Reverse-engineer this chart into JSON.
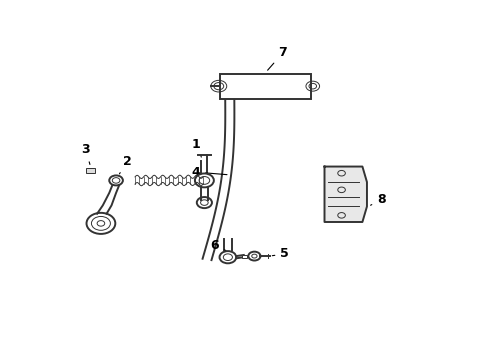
{
  "bg_color": "#ffffff",
  "line_color": "#333333",
  "label_color": "#000000",
  "fs": 9,
  "lw_main": 1.4,
  "lw_thin": 0.7
}
